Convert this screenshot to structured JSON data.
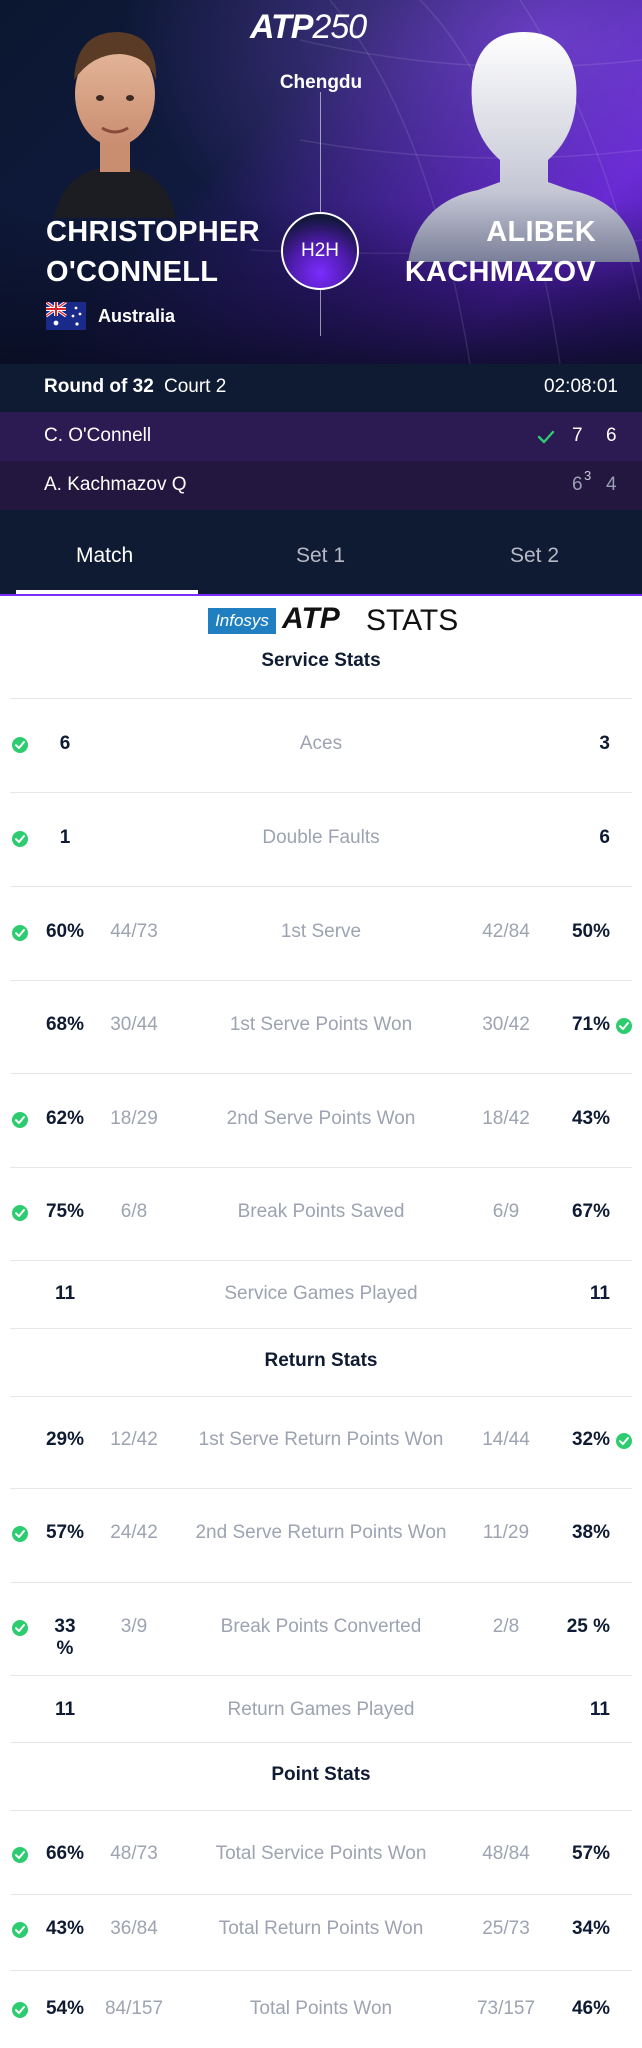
{
  "header": {
    "logo_text": "ATP",
    "logo_number": "250",
    "city": "Chengdu",
    "h2h_label": "H2H"
  },
  "player1": {
    "first_name": "CHRISTOPHER",
    "last_name": "O'CONNELL",
    "country": "Australia"
  },
  "player2": {
    "first_name": "ALIBEK",
    "last_name": "KACHMAZOV"
  },
  "match": {
    "round": "Round of 32",
    "court": "Court 2",
    "duration": "02:08:01",
    "rows": [
      {
        "name": "C. O'Connell",
        "sets": [
          "7",
          "6"
        ],
        "winner": true
      },
      {
        "name": "A. Kachmazov  Q",
        "sets": [
          "6",
          "4"
        ],
        "tiebreak": "3",
        "winner": false
      }
    ]
  },
  "tabs": [
    {
      "label": "Match",
      "active": true
    },
    {
      "label": "Set 1",
      "active": false
    },
    {
      "label": "Set 2",
      "active": false
    }
  ],
  "stats_brand": {
    "infosys": "Infosys",
    "atp": "ATP",
    "stats": "STATS"
  },
  "sections": [
    {
      "title": "Service Stats",
      "rows": [
        {
          "label": "Aces",
          "left_value": "6",
          "right_value": "3",
          "leader": "left"
        },
        {
          "label": "Double Faults",
          "left_value": "1",
          "right_value": "6",
          "leader": "left"
        },
        {
          "label": "1st Serve",
          "left_value": "60%",
          "left_sub": "44/73",
          "right_sub": "42/84",
          "right_value": "50%",
          "leader": "left"
        },
        {
          "label": "1st Serve Points Won",
          "left_value": "68%",
          "left_sub": "30/44",
          "right_sub": "30/42",
          "right_value": "71%",
          "leader": "right"
        },
        {
          "label": "2nd Serve Points Won",
          "left_value": "62%",
          "left_sub": "18/29",
          "right_sub": "18/42",
          "right_value": "43%",
          "leader": "left"
        },
        {
          "label": "Break Points Saved",
          "left_value": "75%",
          "left_sub": "6/8",
          "right_sub": "6/9",
          "right_value": "67%",
          "leader": "left"
        },
        {
          "label": "Service Games Played",
          "left_value": "11",
          "right_value": "11",
          "leader": "none"
        }
      ]
    },
    {
      "title": "Return Stats",
      "rows": [
        {
          "label": "1st Serve Return Points Won",
          "left_value": "29%",
          "left_sub": "12/42",
          "right_sub": "14/44",
          "right_value": "32%",
          "leader": "right"
        },
        {
          "label": "2nd Serve Return Points Won",
          "left_value": "57%",
          "left_sub": "24/42",
          "right_sub": "11/29",
          "right_value": "38%",
          "leader": "left"
        },
        {
          "label": "Break Points Converted",
          "left_value": "33 %",
          "left_sub": "3/9",
          "right_sub": "2/8",
          "right_value": "25 %",
          "leader": "left"
        },
        {
          "label": "Return Games Played",
          "left_value": "11",
          "right_value": "11",
          "leader": "none"
        }
      ]
    },
    {
      "title": "Point Stats",
      "rows": [
        {
          "label": "Total Service Points Won",
          "left_value": "66%",
          "left_sub": "48/73",
          "right_sub": "48/84",
          "right_value": "57%",
          "leader": "left"
        },
        {
          "label": "Total Return Points Won",
          "left_value": "43%",
          "left_sub": "36/84",
          "right_sub": "25/73",
          "right_value": "34%",
          "leader": "left"
        },
        {
          "label": "Total Points Won",
          "left_value": "54%",
          "left_sub": "84/157",
          "right_sub": "73/157",
          "right_value": "46%",
          "leader": "left"
        }
      ]
    }
  ],
  "colors": {
    "accent_purple": "#7b2cff",
    "win_green": "#2ecc71",
    "navy": "#0f1b33"
  },
  "icons": {
    "check": "check-circle-icon",
    "flag": "australia-flag-icon"
  }
}
